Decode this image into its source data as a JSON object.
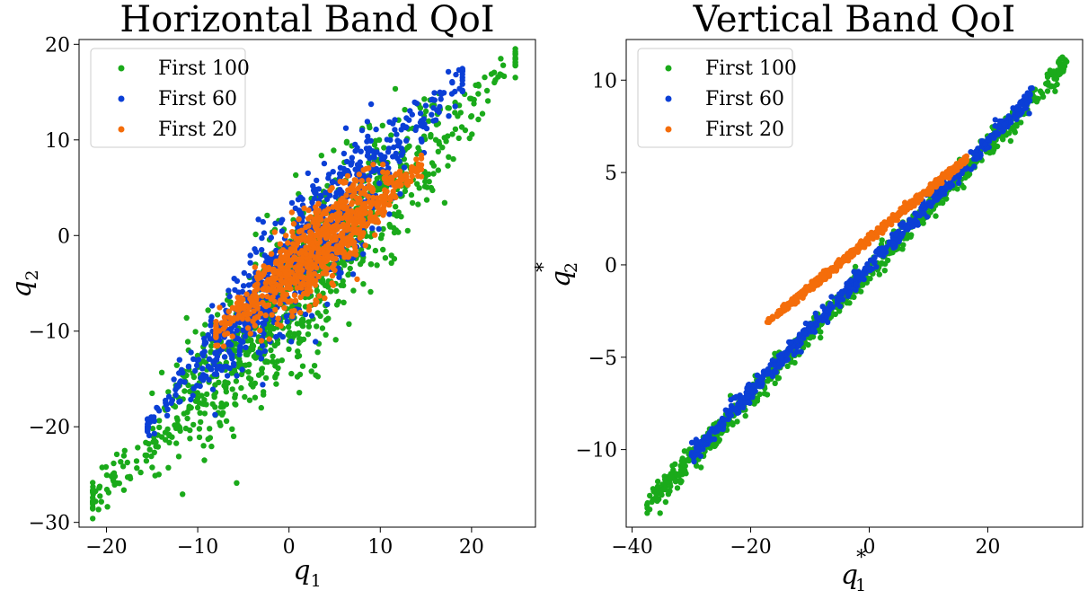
{
  "colors": {
    "first100": "#1aaa1a",
    "first60": "#0b3fd6",
    "first20": "#f46d0a"
  },
  "chart_data": [
    {
      "type": "scatter",
      "title": "Horizontal Band QoI",
      "xlabel_base": "q",
      "xlabel_sub": "1",
      "xlabel_sup": "",
      "ylabel_base": "q",
      "ylabel_sub": "2",
      "ylabel_sup": "",
      "xlim": [
        -23,
        27
      ],
      "ylim": [
        -30.5,
        20.5
      ],
      "xticks": [
        -20,
        -10,
        0,
        10,
        20
      ],
      "yticks": [
        -30,
        -20,
        -10,
        0,
        10,
        20
      ],
      "xtick_labels": [
        "−20",
        "−10",
        "0",
        "10",
        "20"
      ],
      "ytick_labels": [
        "−30",
        "−20",
        "−10",
        "0",
        "10",
        "20"
      ],
      "legend_position": "top-left",
      "series": [
        {
          "name": "First 100",
          "color_key": "first100",
          "kind": "band",
          "x_start": -21.5,
          "x_end": 24.8,
          "slope": 1.0,
          "intercept": -6.2,
          "spread": 4.6,
          "count": 1000,
          "points": [
            [
              -21.2,
              -27.8
            ],
            [
              -20.8,
              -26.4
            ],
            [
              24.8,
              17.8
            ],
            [
              22.5,
              16.0
            ],
            [
              -18.0,
              -22.5
            ],
            [
              -15.0,
              -16.5
            ],
            [
              18.0,
              8.0
            ],
            [
              20.0,
              12.5
            ],
            [
              13.0,
              0.5
            ],
            [
              6.0,
              -7.0
            ],
            [
              -10.0,
              -18.0
            ],
            [
              15.0,
              13.0
            ],
            [
              -2.0,
              -12.0
            ],
            [
              3.0,
              -9.5
            ],
            [
              9.0,
              -3.0
            ],
            [
              -6.0,
              -14.0
            ]
          ]
        },
        {
          "name": "First 60",
          "color_key": "first60",
          "kind": "band",
          "x_start": -15.5,
          "x_end": 19.0,
          "slope": 1.05,
          "intercept": -3.3,
          "spread": 3.4,
          "count": 800,
          "points": [
            [
              -15.2,
              -19.5
            ],
            [
              -14.5,
              -18.0
            ],
            [
              18.2,
              13.5
            ],
            [
              17.5,
              12.5
            ],
            [
              -12.0,
              -13.0
            ],
            [
              -8.0,
              -13.0
            ],
            [
              12.0,
              9.5
            ],
            [
              4.0,
              4.5
            ],
            [
              -3.0,
              -1.5
            ],
            [
              -6.0,
              -4.5
            ],
            [
              8.0,
              11.0
            ],
            [
              14.5,
              12.0
            ]
          ]
        },
        {
          "name": "First 20",
          "color_key": "first20",
          "kind": "band",
          "x_start": -8.0,
          "x_end": 14.5,
          "slope": 0.78,
          "intercept": -3.9,
          "spread": 2.6,
          "count": 800,
          "points": [
            [
              -7.8,
              -11.5
            ],
            [
              -7.0,
              -9.5
            ],
            [
              14.2,
              6.8
            ],
            [
              13.5,
              6.2
            ],
            [
              10.0,
              2.5
            ],
            [
              -4.0,
              -6.5
            ],
            [
              0.0,
              -4.0
            ],
            [
              5.0,
              0.0
            ],
            [
              8.0,
              2.5
            ],
            [
              2.0,
              -2.5
            ]
          ]
        }
      ]
    },
    {
      "type": "scatter",
      "title": "Vertical Band QoI",
      "xlabel_base": "q",
      "xlabel_sub": "1",
      "xlabel_sup": "*",
      "ylabel_base": "q",
      "ylabel_sub": "2",
      "ylabel_sup": "*",
      "xlim": [
        -41,
        36
      ],
      "ylim": [
        -14.2,
        12.2
      ],
      "xticks": [
        -40,
        -20,
        0,
        20
      ],
      "yticks": [
        -10,
        -5,
        0,
        5,
        10
      ],
      "xtick_labels": [
        "−40",
        "−20",
        "0",
        "20"
      ],
      "ytick_labels": [
        "−10",
        "−5",
        "0",
        "5",
        "10"
      ],
      "legend_position": "top-left",
      "series": [
        {
          "name": "First 100",
          "color_key": "first100",
          "kind": "line",
          "x_start": -37.5,
          "x_end": 33.5,
          "slope": 0.3385,
          "intercept": -0.34,
          "spread": 0.35,
          "count": 700,
          "points": [
            [
              -37.5,
              -13.0
            ],
            [
              -36.5,
              -12.7
            ],
            [
              33.3,
              11.0
            ],
            [
              31.5,
              10.2
            ]
          ]
        },
        {
          "name": "First 60",
          "color_key": "first60",
          "kind": "line",
          "x_start": -30.0,
          "x_end": 27.5,
          "slope": 0.3385,
          "intercept": -0.1,
          "spread": 0.25,
          "count": 600,
          "points": [
            [
              -30.0,
              -10.3
            ],
            [
              27.0,
              8.2
            ]
          ]
        },
        {
          "name": "First 20",
          "color_key": "first20",
          "kind": "line",
          "x_start": -17.0,
          "x_end": 16.5,
          "slope": 0.265,
          "intercept": 1.42,
          "spread": 0.12,
          "count": 500,
          "points": [
            [
              -17.2,
              -3.1
            ],
            [
              16.3,
              5.8
            ]
          ]
        }
      ]
    }
  ]
}
